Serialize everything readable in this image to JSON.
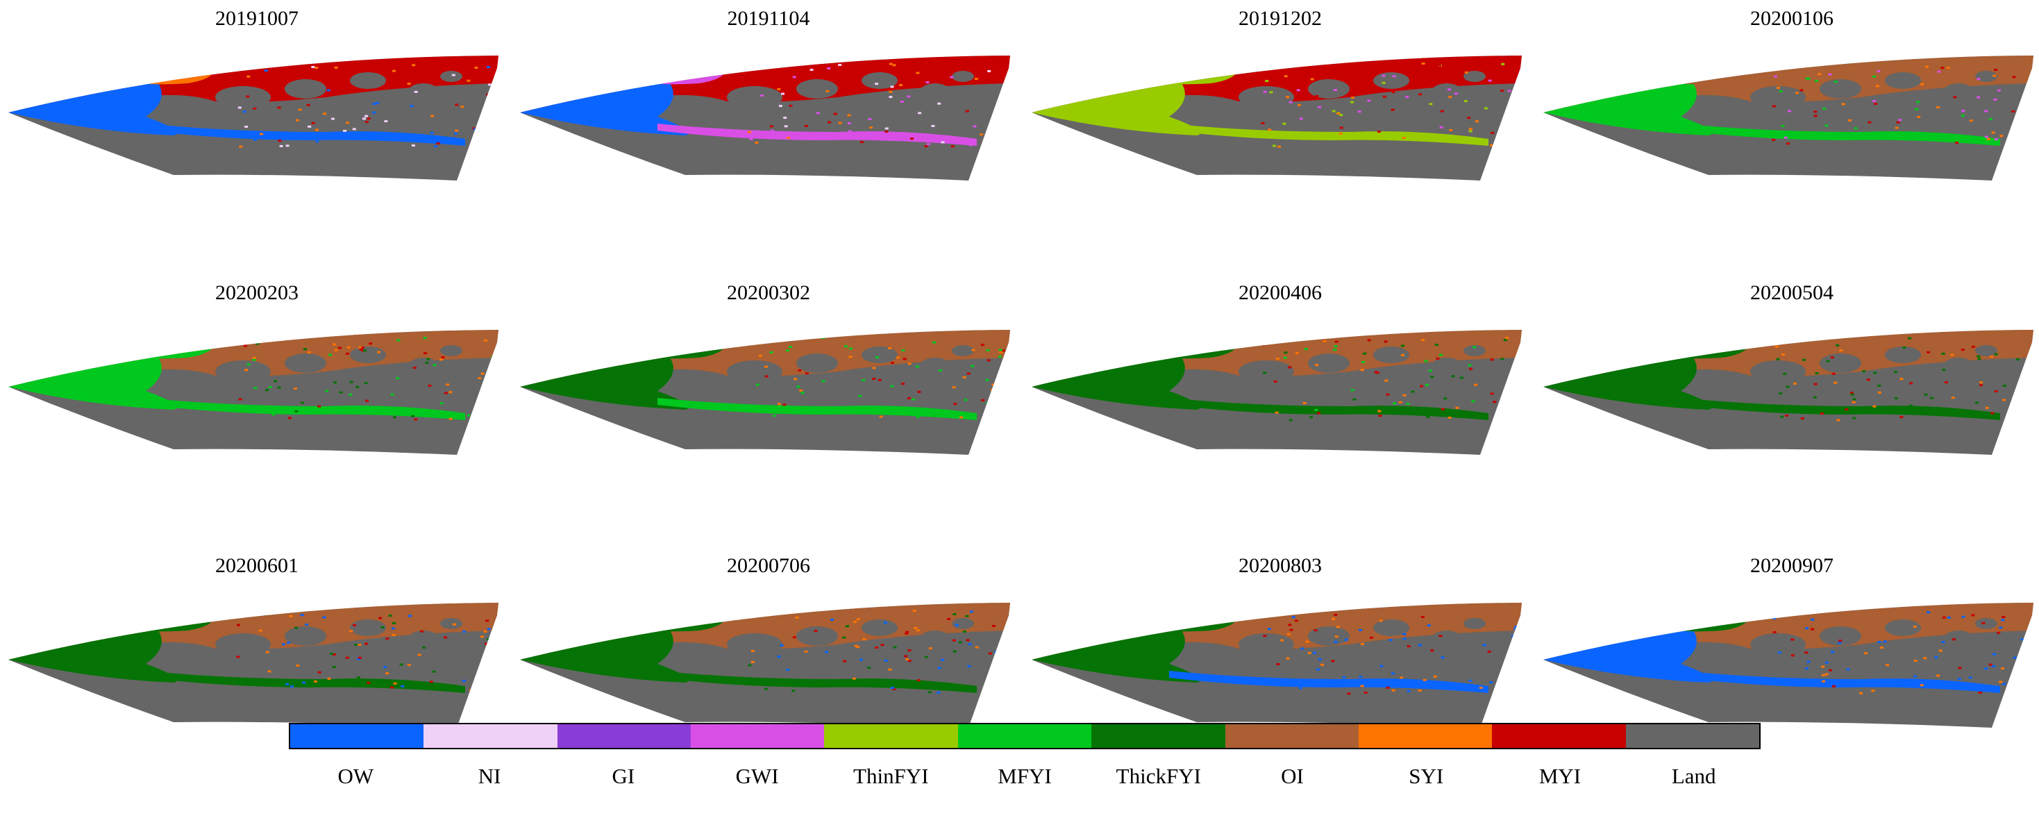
{
  "panels": [
    {
      "date": "20191007",
      "west": "OW",
      "north": "MYI",
      "patch": "SYI",
      "mid": "OW",
      "edge": "NI"
    },
    {
      "date": "20191104",
      "west": "OW",
      "north": "MYI",
      "patch": "GWI",
      "mid": "GWI",
      "edge": "NI"
    },
    {
      "date": "20191202",
      "west": "ThinFYI",
      "north": "MYI",
      "patch": "ThinFYI",
      "mid": "ThinFYI",
      "edge": "GWI"
    },
    {
      "date": "20200106",
      "west": "MFYI",
      "north": "OI",
      "patch": "OI",
      "mid": "MFYI",
      "edge": "GWI"
    },
    {
      "date": "20200203",
      "west": "MFYI",
      "north": "OI",
      "patch": "MFYI",
      "mid": "MFYI",
      "edge": "ThickFYI"
    },
    {
      "date": "20200302",
      "west": "ThickFYI",
      "north": "OI",
      "patch": "ThickFYI",
      "mid": "MFYI",
      "edge": "MFYI"
    },
    {
      "date": "20200406",
      "west": "ThickFYI",
      "north": "OI",
      "patch": "ThickFYI",
      "mid": "ThickFYI",
      "edge": "MFYI"
    },
    {
      "date": "20200504",
      "west": "ThickFYI",
      "north": "OI",
      "patch": "ThickFYI",
      "mid": "ThickFYI",
      "edge": "ThickFYI"
    },
    {
      "date": "20200601",
      "west": "ThickFYI",
      "north": "OI",
      "patch": "ThickFYI",
      "mid": "ThickFYI",
      "edge": "OW"
    },
    {
      "date": "20200706",
      "west": "ThickFYI",
      "north": "OI",
      "patch": "ThickFYI",
      "mid": "ThickFYI",
      "edge": "OW"
    },
    {
      "date": "20200803",
      "west": "ThickFYI",
      "north": "OI",
      "patch": "ThickFYI",
      "mid": "OW",
      "edge": "OW"
    },
    {
      "date": "20200907",
      "west": "OW",
      "north": "OI",
      "patch": "ThickFYI",
      "mid": "OW",
      "edge": "OW"
    }
  ],
  "legend": [
    {
      "label": "OW",
      "color": "#0a64ff"
    },
    {
      "label": "NI",
      "color": "#efd0f6"
    },
    {
      "label": "GI",
      "color": "#8a3cd6"
    },
    {
      "label": "GWI",
      "color": "#d94fe6"
    },
    {
      "label": "ThinFYI",
      "color": "#99cc00"
    },
    {
      "label": "MFYI",
      "color": "#00c81e"
    },
    {
      "label": "ThickFYI",
      "color": "#067306"
    },
    {
      "label": "OI",
      "color": "#ab5f32"
    },
    {
      "label": "SYI",
      "color": "#ff7400"
    },
    {
      "label": "MYI",
      "color": "#c80000"
    },
    {
      "label": "Land",
      "color": "#666666"
    }
  ]
}
